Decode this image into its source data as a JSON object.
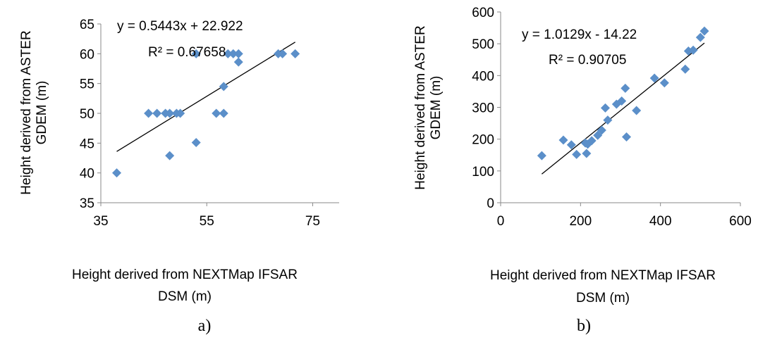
{
  "chart_data": [
    {
      "type": "scatter",
      "xlabel": [
        "Height derived from NEXTMap IFSAR",
        "DSM (m)"
      ],
      "ylabel": [
        "Height derived from ASTER",
        "GDEM (m)"
      ],
      "xlim": [
        35,
        80
      ],
      "ylim": [
        35,
        65
      ],
      "xticks": [
        "35",
        "55",
        "75"
      ],
      "xtick_values": [
        35,
        55,
        75
      ],
      "yticks": [
        "35",
        "40",
        "45",
        "50",
        "55",
        "60",
        "65"
      ],
      "ytick_values": [
        35,
        40,
        45,
        50,
        55,
        60,
        65
      ],
      "grid": false,
      "marker_color": "#5b8fc9",
      "points": [
        {
          "x": 38.0,
          "y": 40.0
        },
        {
          "x": 44.0,
          "y": 50.0
        },
        {
          "x": 45.6,
          "y": 50.0
        },
        {
          "x": 47.2,
          "y": 50.0
        },
        {
          "x": 48.0,
          "y": 50.0
        },
        {
          "x": 48.0,
          "y": 42.9
        },
        {
          "x": 49.3,
          "y": 50.0
        },
        {
          "x": 50.0,
          "y": 50.0
        },
        {
          "x": 53.0,
          "y": 60.0
        },
        {
          "x": 53.0,
          "y": 45.1
        },
        {
          "x": 56.8,
          "y": 50.0
        },
        {
          "x": 58.2,
          "y": 50.0
        },
        {
          "x": 58.2,
          "y": 54.5
        },
        {
          "x": 59.0,
          "y": 60.0
        },
        {
          "x": 60.0,
          "y": 60.0
        },
        {
          "x": 61.0,
          "y": 60.0
        },
        {
          "x": 61.0,
          "y": 58.6
        },
        {
          "x": 68.5,
          "y": 60.0
        },
        {
          "x": 69.3,
          "y": 60.0
        },
        {
          "x": 71.7,
          "y": 60.0
        }
      ],
      "trendline": {
        "slope": 0.5443,
        "intercept": 22.922,
        "x_range": [
          38.0,
          71.7
        ]
      },
      "equation": "y = 0.5443x + 22.922",
      "r2": "R² = 0.67658",
      "caption": "a)"
    },
    {
      "type": "scatter",
      "xlabel": [
        "Height derived from NEXTMap IFSAR",
        "DSM (m)"
      ],
      "ylabel": [
        "Height derived from ASTER",
        "GDEM (m)"
      ],
      "xlim": [
        0,
        600
      ],
      "ylim": [
        0,
        600
      ],
      "xticks": [
        "0",
        "200",
        "400",
        "600"
      ],
      "xtick_values": [
        0,
        200,
        400,
        600
      ],
      "yticks": [
        "0",
        "100",
        "200",
        "300",
        "400",
        "500",
        "600"
      ],
      "ytick_values": [
        0,
        100,
        200,
        300,
        400,
        500,
        600
      ],
      "grid": false,
      "marker_color": "#5b8fc9",
      "points": [
        {
          "x": 103,
          "y": 148
        },
        {
          "x": 157,
          "y": 197
        },
        {
          "x": 177,
          "y": 182
        },
        {
          "x": 190,
          "y": 152
        },
        {
          "x": 212,
          "y": 188
        },
        {
          "x": 215,
          "y": 155
        },
        {
          "x": 218,
          "y": 184
        },
        {
          "x": 228,
          "y": 195
        },
        {
          "x": 243,
          "y": 212
        },
        {
          "x": 253,
          "y": 228
        },
        {
          "x": 262,
          "y": 298
        },
        {
          "x": 268,
          "y": 260
        },
        {
          "x": 290,
          "y": 310
        },
        {
          "x": 303,
          "y": 320
        },
        {
          "x": 312,
          "y": 360
        },
        {
          "x": 315,
          "y": 207
        },
        {
          "x": 340,
          "y": 290
        },
        {
          "x": 385,
          "y": 392
        },
        {
          "x": 410,
          "y": 377
        },
        {
          "x": 462,
          "y": 420
        },
        {
          "x": 470,
          "y": 477
        },
        {
          "x": 482,
          "y": 480
        },
        {
          "x": 500,
          "y": 520
        },
        {
          "x": 510,
          "y": 540
        }
      ],
      "trendline": {
        "slope": 1.0129,
        "intercept": -14.22,
        "x_range": [
          103,
          510
        ]
      },
      "equation": "y = 1.0129x - 14.22",
      "r2": "R² = 0.90705",
      "caption": "b)"
    }
  ]
}
